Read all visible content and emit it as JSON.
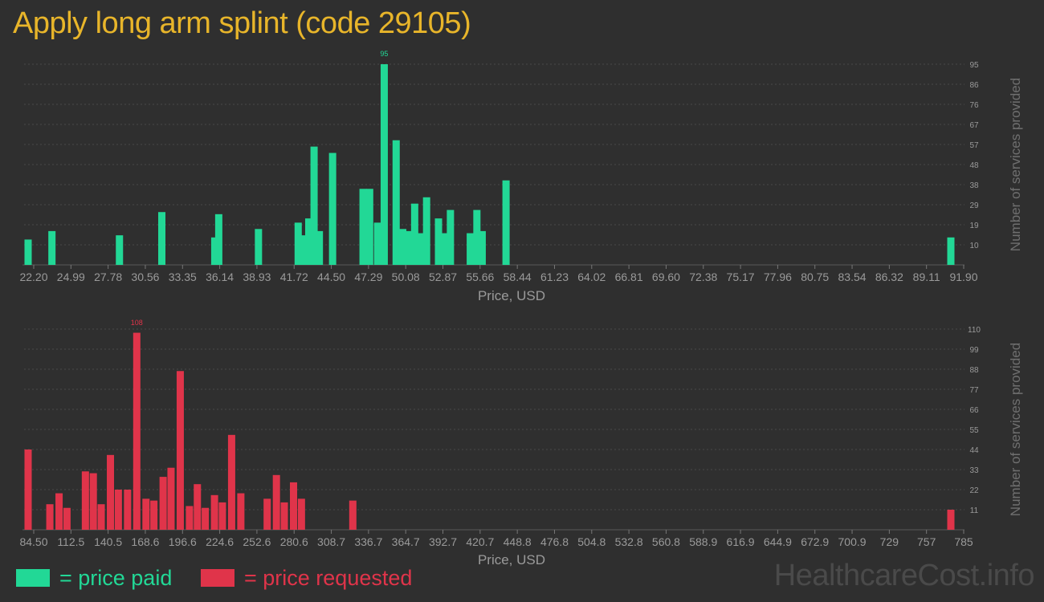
{
  "title": "Apply long arm splint (code 29105)",
  "colors": {
    "paid": "#22d896",
    "requested": "#e0344a",
    "axis_text": "#9a9a9a",
    "grid": "#4a4a4a",
    "background": "#2f2f2f"
  },
  "legend": {
    "paid_label": "= price paid",
    "requested_label": "= price requested"
  },
  "watermark": "HealthcareCost.info",
  "chart_data": [
    {
      "type": "bar",
      "series_role": "price paid",
      "xlabel": "Price, USD",
      "ylabel": "Number of services provided",
      "x_ticks": [
        "22.20",
        "24.99",
        "27.78",
        "30.56",
        "33.35",
        "36.14",
        "38.93",
        "41.72",
        "44.50",
        "47.29",
        "50.08",
        "52.87",
        "55.66",
        "58.44",
        "61.23",
        "64.02",
        "66.81",
        "69.60",
        "72.38",
        "75.17",
        "77.96",
        "80.75",
        "83.54",
        "86.32",
        "89.11",
        "91.90"
      ],
      "x_range": [
        22.2,
        91.9
      ],
      "y_ticks": [
        "95",
        "86",
        "76",
        "67",
        "57",
        "48",
        "38",
        "29",
        "19",
        "10"
      ],
      "ylim": [
        0,
        95
      ],
      "max_label": "95",
      "bars": [
        {
          "x": 22.2,
          "y": 12
        },
        {
          "x": 24.0,
          "y": 16
        },
        {
          "x": 29.1,
          "y": 14
        },
        {
          "x": 32.3,
          "y": 25
        },
        {
          "x": 36.3,
          "y": 13
        },
        {
          "x": 36.6,
          "y": 24
        },
        {
          "x": 39.6,
          "y": 17
        },
        {
          "x": 42.6,
          "y": 20
        },
        {
          "x": 43.0,
          "y": 14
        },
        {
          "x": 43.4,
          "y": 22
        },
        {
          "x": 43.8,
          "y": 56
        },
        {
          "x": 44.2,
          "y": 16
        },
        {
          "x": 45.2,
          "y": 53
        },
        {
          "x": 47.5,
          "y": 36
        },
        {
          "x": 48.0,
          "y": 36
        },
        {
          "x": 48.6,
          "y": 20
        },
        {
          "x": 49.1,
          "y": 95
        },
        {
          "x": 50.0,
          "y": 59
        },
        {
          "x": 50.5,
          "y": 17
        },
        {
          "x": 51.0,
          "y": 16
        },
        {
          "x": 51.4,
          "y": 29
        },
        {
          "x": 51.9,
          "y": 15
        },
        {
          "x": 52.3,
          "y": 32
        },
        {
          "x": 53.2,
          "y": 22
        },
        {
          "x": 53.6,
          "y": 15
        },
        {
          "x": 54.1,
          "y": 26
        },
        {
          "x": 55.6,
          "y": 15
        },
        {
          "x": 56.1,
          "y": 26
        },
        {
          "x": 56.5,
          "y": 16
        },
        {
          "x": 58.3,
          "y": 40
        },
        {
          "x": 91.9,
          "y": 13
        }
      ]
    },
    {
      "type": "bar",
      "series_role": "price requested",
      "xlabel": "Price, USD",
      "ylabel": "Number of services provided",
      "x_ticks": [
        "84.50",
        "112.5",
        "140.5",
        "168.6",
        "196.6",
        "224.6",
        "252.6",
        "280.6",
        "308.7",
        "336.7",
        "364.7",
        "392.7",
        "420.7",
        "448.8",
        "476.8",
        "504.8",
        "532.8",
        "560.8",
        "588.9",
        "616.9",
        "644.9",
        "672.9",
        "700.9",
        "729",
        "757",
        "785"
      ],
      "x_range": [
        84.5,
        785
      ],
      "y_ticks": [
        "110",
        "99",
        "88",
        "77",
        "66",
        "55",
        "44",
        "33",
        "22",
        "11"
      ],
      "ylim": [
        0,
        110
      ],
      "max_label": "108",
      "bars": [
        {
          "x": 84.5,
          "y": 44
        },
        {
          "x": 101,
          "y": 14
        },
        {
          "x": 108,
          "y": 20
        },
        {
          "x": 114,
          "y": 12
        },
        {
          "x": 128,
          "y": 32
        },
        {
          "x": 134,
          "y": 31
        },
        {
          "x": 140,
          "y": 14
        },
        {
          "x": 147,
          "y": 41
        },
        {
          "x": 153,
          "y": 22
        },
        {
          "x": 160,
          "y": 22
        },
        {
          "x": 167,
          "y": 108
        },
        {
          "x": 174,
          "y": 17
        },
        {
          "x": 180,
          "y": 16
        },
        {
          "x": 187,
          "y": 29
        },
        {
          "x": 193,
          "y": 34
        },
        {
          "x": 200,
          "y": 87
        },
        {
          "x": 207,
          "y": 13
        },
        {
          "x": 213,
          "y": 25
        },
        {
          "x": 219,
          "y": 12
        },
        {
          "x": 226,
          "y": 19
        },
        {
          "x": 232,
          "y": 15
        },
        {
          "x": 239,
          "y": 52
        },
        {
          "x": 246,
          "y": 20
        },
        {
          "x": 266,
          "y": 17
        },
        {
          "x": 273,
          "y": 30
        },
        {
          "x": 279,
          "y": 15
        },
        {
          "x": 286,
          "y": 26
        },
        {
          "x": 292,
          "y": 17
        },
        {
          "x": 331,
          "y": 16
        },
        {
          "x": 785,
          "y": 11
        }
      ]
    }
  ]
}
